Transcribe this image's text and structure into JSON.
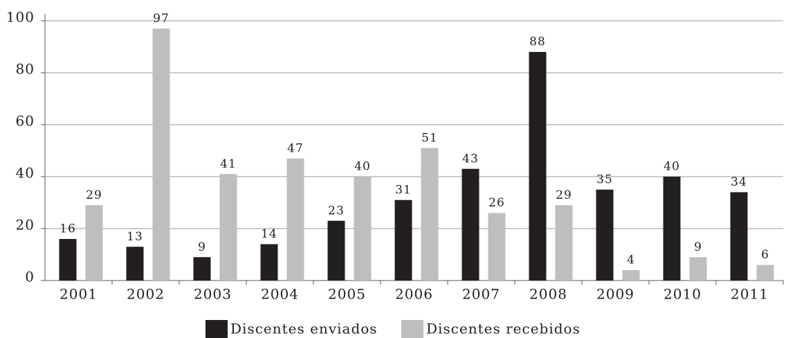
{
  "chart_data": {
    "type": "bar",
    "categories": [
      "2001",
      "2002",
      "2003",
      "2004",
      "2005",
      "2006",
      "2007",
      "2008",
      "2009",
      "2010",
      "2011"
    ],
    "series": [
      {
        "name": "Discentes enviados",
        "color": "#231f20",
        "values": [
          16,
          13,
          9,
          14,
          23,
          31,
          43,
          88,
          35,
          40,
          34
        ]
      },
      {
        "name": "Discentes recebidos",
        "color": "#bcbec0",
        "values": [
          29,
          97,
          41,
          47,
          40,
          51,
          26,
          29,
          4,
          9,
          6
        ]
      }
    ],
    "ylim": [
      0,
      100
    ],
    "yticks": [
      0,
      20,
      40,
      60,
      80,
      100
    ],
    "grid": true,
    "legend": "bottom"
  }
}
